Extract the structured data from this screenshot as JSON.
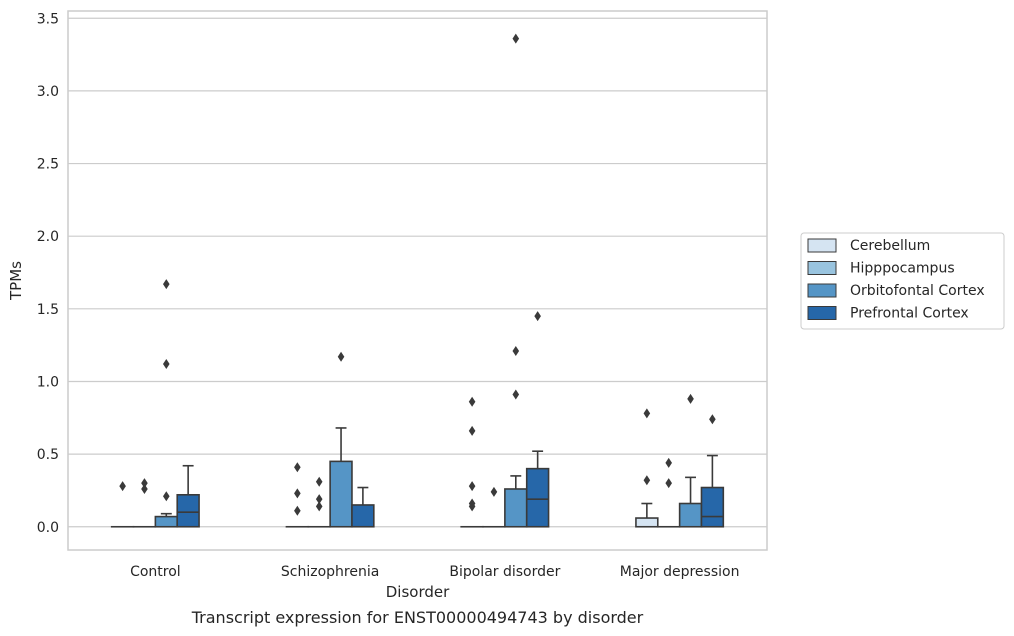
{
  "chart_data": {
    "type": "box",
    "caption": "Transcript expression for ENST00000494743 by disorder",
    "xlabel": "Disorder",
    "ylabel": "TPMs",
    "ylim": [
      -0.16,
      3.55
    ],
    "yticks": [
      0.0,
      0.5,
      1.0,
      1.5,
      2.0,
      2.5,
      3.0,
      3.5
    ],
    "ytick_labels": [
      "0.0",
      "0.5",
      "1.0",
      "1.5",
      "2.0",
      "2.5",
      "3.0",
      "3.5"
    ],
    "grid": "horizontal",
    "legend_placement": "right",
    "categories": [
      "Control",
      "Schizophrenia",
      "Bipolar disorder",
      "Major depression"
    ],
    "series": [
      {
        "name": "Cerebellum",
        "color": "#d5e4f2",
        "boxes": [
          {
            "q1": 0,
            "median": 0,
            "q3": 0,
            "whislo": 0,
            "whishi": 0,
            "fliers": [
              0.28
            ]
          },
          {
            "q1": 0,
            "median": 0,
            "q3": 0,
            "whislo": 0,
            "whishi": 0,
            "fliers": [
              0.11,
              0.23,
              0.41
            ]
          },
          {
            "q1": 0,
            "median": 0,
            "q3": 0,
            "whislo": 0,
            "whishi": 0,
            "fliers": [
              0.14,
              0.16,
              0.28,
              0.66,
              0.86
            ]
          },
          {
            "q1": 0,
            "median": 0,
            "q3": 0.06,
            "whislo": 0,
            "whishi": 0.16,
            "fliers": [
              0.32,
              0.78
            ]
          }
        ]
      },
      {
        "name": "Hipppocampus",
        "color": "#99c4df",
        "boxes": [
          {
            "q1": 0,
            "median": 0,
            "q3": 0,
            "whislo": 0,
            "whishi": 0,
            "fliers": [
              0.26,
              0.3
            ]
          },
          {
            "q1": 0,
            "median": 0,
            "q3": 0,
            "whislo": 0,
            "whishi": 0,
            "fliers": [
              0.14,
              0.19,
              0.31
            ]
          },
          {
            "q1": 0,
            "median": 0,
            "q3": 0,
            "whislo": 0,
            "whishi": 0,
            "fliers": [
              0.24
            ]
          },
          {
            "q1": 0,
            "median": 0,
            "q3": 0,
            "whislo": 0,
            "whishi": 0,
            "fliers": [
              0.3,
              0.44
            ]
          }
        ]
      },
      {
        "name": "Orbitofontal Cortex",
        "color": "#5595c6",
        "boxes": [
          {
            "q1": 0,
            "median": 0,
            "q3": 0.07,
            "whislo": 0,
            "whishi": 0.09,
            "fliers": [
              0.21,
              1.12,
              1.67
            ]
          },
          {
            "q1": 0,
            "median": 0,
            "q3": 0.45,
            "whislo": 0,
            "whishi": 0.68,
            "fliers": [
              1.17
            ]
          },
          {
            "q1": 0,
            "median": 0,
            "q3": 0.26,
            "whislo": 0,
            "whishi": 0.35,
            "fliers": [
              0.91,
              1.21,
              3.36
            ]
          },
          {
            "q1": 0,
            "median": 0,
            "q3": 0.16,
            "whislo": 0,
            "whishi": 0.34,
            "fliers": [
              0.88
            ]
          }
        ]
      },
      {
        "name": "Prefrontal Cortex",
        "color": "#2667a9",
        "boxes": [
          {
            "q1": 0,
            "median": 0.1,
            "q3": 0.22,
            "whislo": 0,
            "whishi": 0.42,
            "fliers": []
          },
          {
            "q1": 0,
            "median": 0,
            "q3": 0.15,
            "whislo": 0,
            "whishi": 0.27,
            "fliers": []
          },
          {
            "q1": 0,
            "median": 0.19,
            "q3": 0.4,
            "whislo": 0,
            "whishi": 0.52,
            "fliers": [
              1.45
            ]
          },
          {
            "q1": 0,
            "median": 0.07,
            "q3": 0.27,
            "whislo": 0,
            "whishi": 0.49,
            "fliers": [
              0.74
            ]
          }
        ]
      }
    ]
  }
}
